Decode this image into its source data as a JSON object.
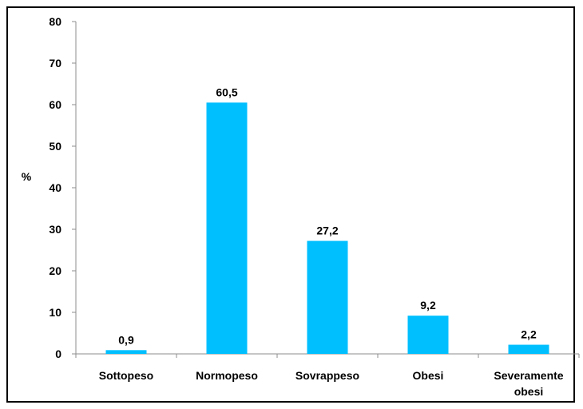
{
  "chart_data": {
    "type": "bar",
    "categories": [
      "Sottopeso",
      "Normopeso",
      "Sovrappeso",
      "Obesi",
      "Severamente obesi"
    ],
    "values": [
      0.9,
      60.5,
      27.2,
      9.2,
      2.2
    ],
    "value_labels": [
      "0,9",
      "60,5",
      "27,2",
      "9,2",
      "2,2"
    ],
    "ylabel": "%",
    "xlabel": "",
    "ylim": [
      0,
      80
    ],
    "yticks": [
      0,
      10,
      20,
      30,
      40,
      50,
      60,
      70,
      80
    ],
    "grid": false,
    "legend": "none",
    "bar_color": "#00BFFF"
  }
}
